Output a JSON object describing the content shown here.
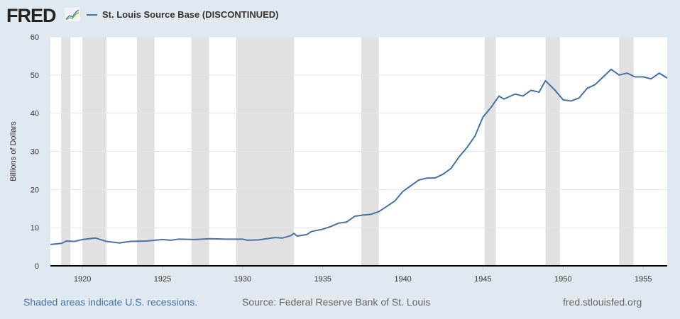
{
  "header": {
    "logo": "FRED",
    "series_name": "St. Louis Source Base (DISCONTINUED)"
  },
  "footer": {
    "recession_note": "Shaded areas indicate U.S. recessions.",
    "source": "Source: Federal Reserve Bank of St. Louis",
    "site": "fred.stlouisfed.org"
  },
  "colors": {
    "line": "#4572a7",
    "recession": "#e1e1e1"
  },
  "chart_data": {
    "type": "line",
    "title": "St. Louis Source Base (DISCONTINUED)",
    "ylabel": "Billions of Dollars",
    "xlabel": "",
    "xlim": [
      1918.0,
      1956.5
    ],
    "ylim": [
      0,
      60
    ],
    "xticks": [
      1920,
      1925,
      1930,
      1935,
      1940,
      1945,
      1950,
      1955
    ],
    "yticks": [
      0,
      10,
      20,
      30,
      40,
      50,
      60
    ],
    "grid": true,
    "recessions": [
      [
        1918.67,
        1919.25
      ],
      [
        1920.0,
        1921.5
      ],
      [
        1923.4,
        1924.5
      ],
      [
        1926.8,
        1927.9
      ],
      [
        1929.6,
        1933.2
      ],
      [
        1937.4,
        1938.5
      ],
      [
        1945.1,
        1945.8
      ],
      [
        1948.9,
        1949.8
      ],
      [
        1953.5,
        1954.4
      ]
    ],
    "series": [
      {
        "name": "St. Louis Source Base (DISCONTINUED)",
        "x": [
          1918.0,
          1918.7,
          1919.0,
          1919.5,
          1920.0,
          1920.8,
          1921.5,
          1922.3,
          1923.0,
          1924.0,
          1925.0,
          1925.5,
          1926.0,
          1927.0,
          1928.0,
          1929.0,
          1930.0,
          1930.3,
          1931.0,
          1932.0,
          1932.5,
          1933.0,
          1933.2,
          1933.4,
          1934.0,
          1934.3,
          1935.0,
          1935.5,
          1936.0,
          1936.5,
          1937.0,
          1937.5,
          1938.0,
          1938.5,
          1939.0,
          1939.5,
          1940.0,
          1940.5,
          1941.0,
          1941.5,
          1942.0,
          1942.5,
          1943.0,
          1943.5,
          1944.0,
          1944.5,
          1945.0,
          1945.5,
          1946.0,
          1946.3,
          1947.0,
          1947.5,
          1948.0,
          1948.5,
          1948.9,
          1949.5,
          1950.0,
          1950.5,
          1951.0,
          1951.5,
          1952.0,
          1952.5,
          1953.0,
          1953.5,
          1954.0,
          1954.5,
          1955.0,
          1955.5,
          1956.0,
          1956.5
        ],
        "values": [
          5.6,
          5.9,
          6.5,
          6.4,
          6.9,
          7.3,
          6.4,
          6.0,
          6.4,
          6.5,
          6.9,
          6.7,
          7.0,
          6.9,
          7.1,
          7.0,
          7.0,
          6.7,
          6.8,
          7.4,
          7.3,
          7.9,
          8.5,
          7.8,
          8.2,
          9.0,
          9.6,
          10.3,
          11.2,
          11.5,
          13.0,
          13.3,
          13.5,
          14.2,
          15.6,
          17.0,
          19.5,
          21.0,
          22.5,
          23.0,
          23.0,
          24.0,
          25.5,
          28.5,
          31.0,
          34.0,
          39.0,
          41.5,
          44.5,
          43.7,
          45.0,
          44.5,
          46.0,
          45.5,
          48.5,
          46.0,
          43.5,
          43.2,
          44.0,
          46.5,
          47.5,
          49.5,
          51.5,
          50.0,
          50.5,
          49.5,
          49.5,
          49.0,
          50.5,
          49.2
        ]
      }
    ]
  }
}
